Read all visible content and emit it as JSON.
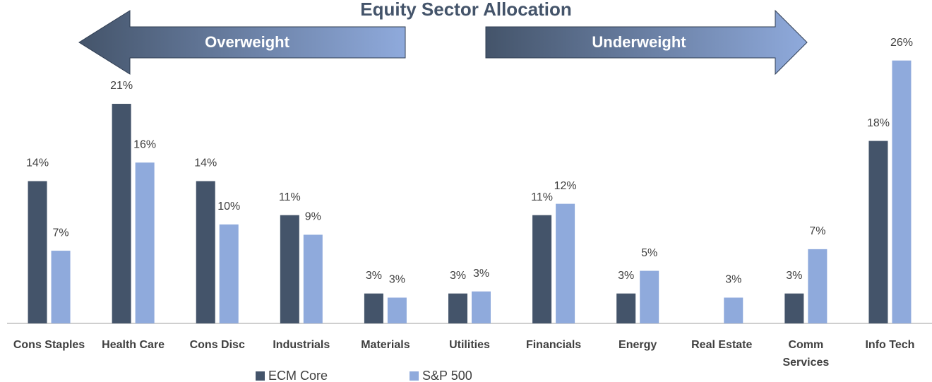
{
  "chart_data": {
    "type": "bar",
    "title": "Equity Sector Allocation",
    "annotations": [
      "Overweight",
      "Underweight"
    ],
    "categories": [
      "Cons Staples",
      "Health Care",
      "Cons Disc",
      "Industrials",
      "Materials",
      "Utilities",
      "Financials",
      "Energy",
      "Real Estate",
      "Comm Services",
      "Info Tech"
    ],
    "series": [
      {
        "name": "ECM Core",
        "color": "#44546a",
        "values": [
          13.8,
          21.3,
          13.8,
          10.5,
          2.9,
          2.9,
          10.5,
          2.9,
          null,
          2.9,
          17.7
        ],
        "value_labels": [
          "14%",
          "21%",
          "14%",
          "11%",
          "3%",
          "3%",
          "11%",
          "3%",
          null,
          "3%",
          "18%"
        ]
      },
      {
        "name": "S&P 500",
        "color": "#8faadc",
        "values": [
          7.05,
          15.6,
          9.6,
          8.6,
          2.5,
          3.1,
          11.6,
          5.1,
          2.5,
          7.2,
          25.5
        ],
        "value_labels": [
          "7%",
          "16%",
          "10%",
          "9%",
          "3%",
          "3%",
          "12%",
          "5%",
          "3%",
          "7%",
          "26%"
        ]
      }
    ],
    "legend": "bottom"
  }
}
